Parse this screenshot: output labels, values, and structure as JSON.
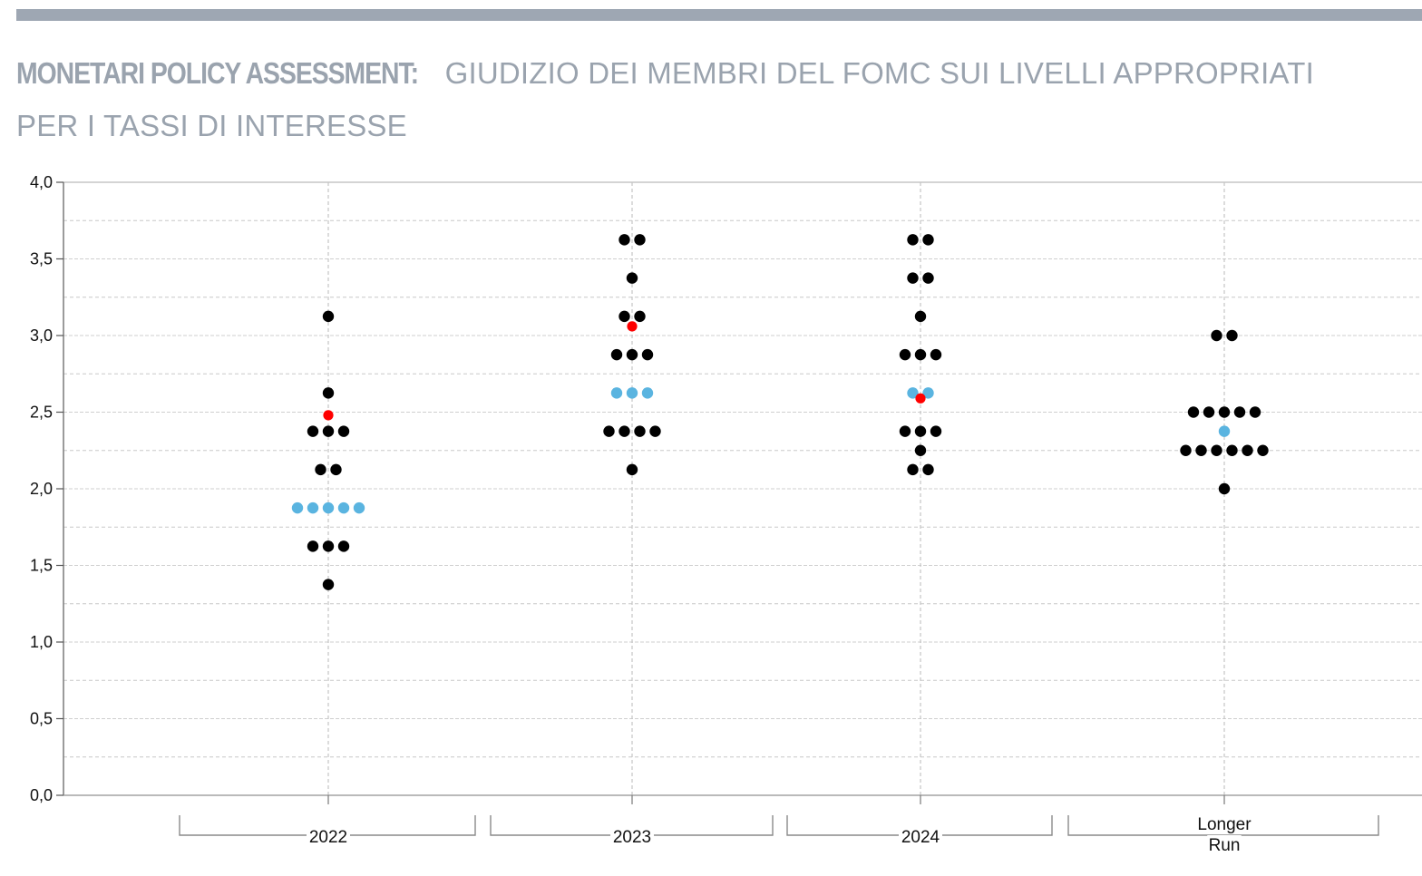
{
  "header": {
    "title_bold": "MONETARI POLICY ASSESSMENT:",
    "title_rest_line1": " GIUDIZIO DEI MEMBRI DEL FOMC SUI LIVELLI APPROPRIATI",
    "title_rest_line2": "PER I TASSI DI INTERESSE"
  },
  "colors": {
    "title": "#9aa3ae",
    "bar": "#9ea7b3",
    "dot_black": "#000000",
    "dot_blue": "#5ab4e0",
    "dot_red": "#ff0000"
  },
  "chart_data": {
    "type": "scatter",
    "title": "",
    "xlabel": "",
    "ylabel": "",
    "ylim": [
      0,
      4
    ],
    "y_ticks": [
      "0,0",
      "0,5",
      "1,0",
      "1,5",
      "2,0",
      "2,5",
      "3,0",
      "3,5",
      "4,0"
    ],
    "grid": true,
    "categories": [
      {
        "label_lines": [
          "2022"
        ]
      },
      {
        "label_lines": [
          "2023"
        ]
      },
      {
        "label_lines": [
          "2024"
        ]
      },
      {
        "label_lines": [
          "Longer",
          "Run"
        ]
      }
    ],
    "groups": [
      {
        "category": "2022",
        "black": [
          [
            3.125,
            1
          ],
          [
            2.625,
            1
          ],
          [
            2.375,
            3
          ],
          [
            2.125,
            2
          ],
          [
            1.625,
            3
          ],
          [
            1.375,
            1
          ]
        ],
        "blue": [
          [
            1.875,
            5
          ]
        ],
        "red": [
          2.48
        ]
      },
      {
        "category": "2023",
        "black": [
          [
            3.625,
            2
          ],
          [
            3.375,
            1
          ],
          [
            3.125,
            2
          ],
          [
            2.875,
            3
          ],
          [
            2.375,
            4
          ],
          [
            2.125,
            1
          ]
        ],
        "blue": [
          [
            2.625,
            3
          ]
        ],
        "red": [
          3.06
        ]
      },
      {
        "category": "2024",
        "black": [
          [
            3.625,
            2
          ],
          [
            3.375,
            2
          ],
          [
            3.125,
            1
          ],
          [
            2.875,
            3
          ],
          [
            2.375,
            3
          ],
          [
            2.25,
            1
          ],
          [
            2.125,
            2
          ]
        ],
        "blue": [
          [
            2.625,
            2
          ]
        ],
        "red": [
          2.59
        ]
      },
      {
        "category": "Longer Run",
        "black": [
          [
            3.0,
            2
          ],
          [
            2.5,
            5
          ],
          [
            2.25,
            6
          ],
          [
            2.0,
            1
          ]
        ],
        "blue": [
          [
            2.375,
            1
          ]
        ],
        "red": []
      }
    ]
  }
}
